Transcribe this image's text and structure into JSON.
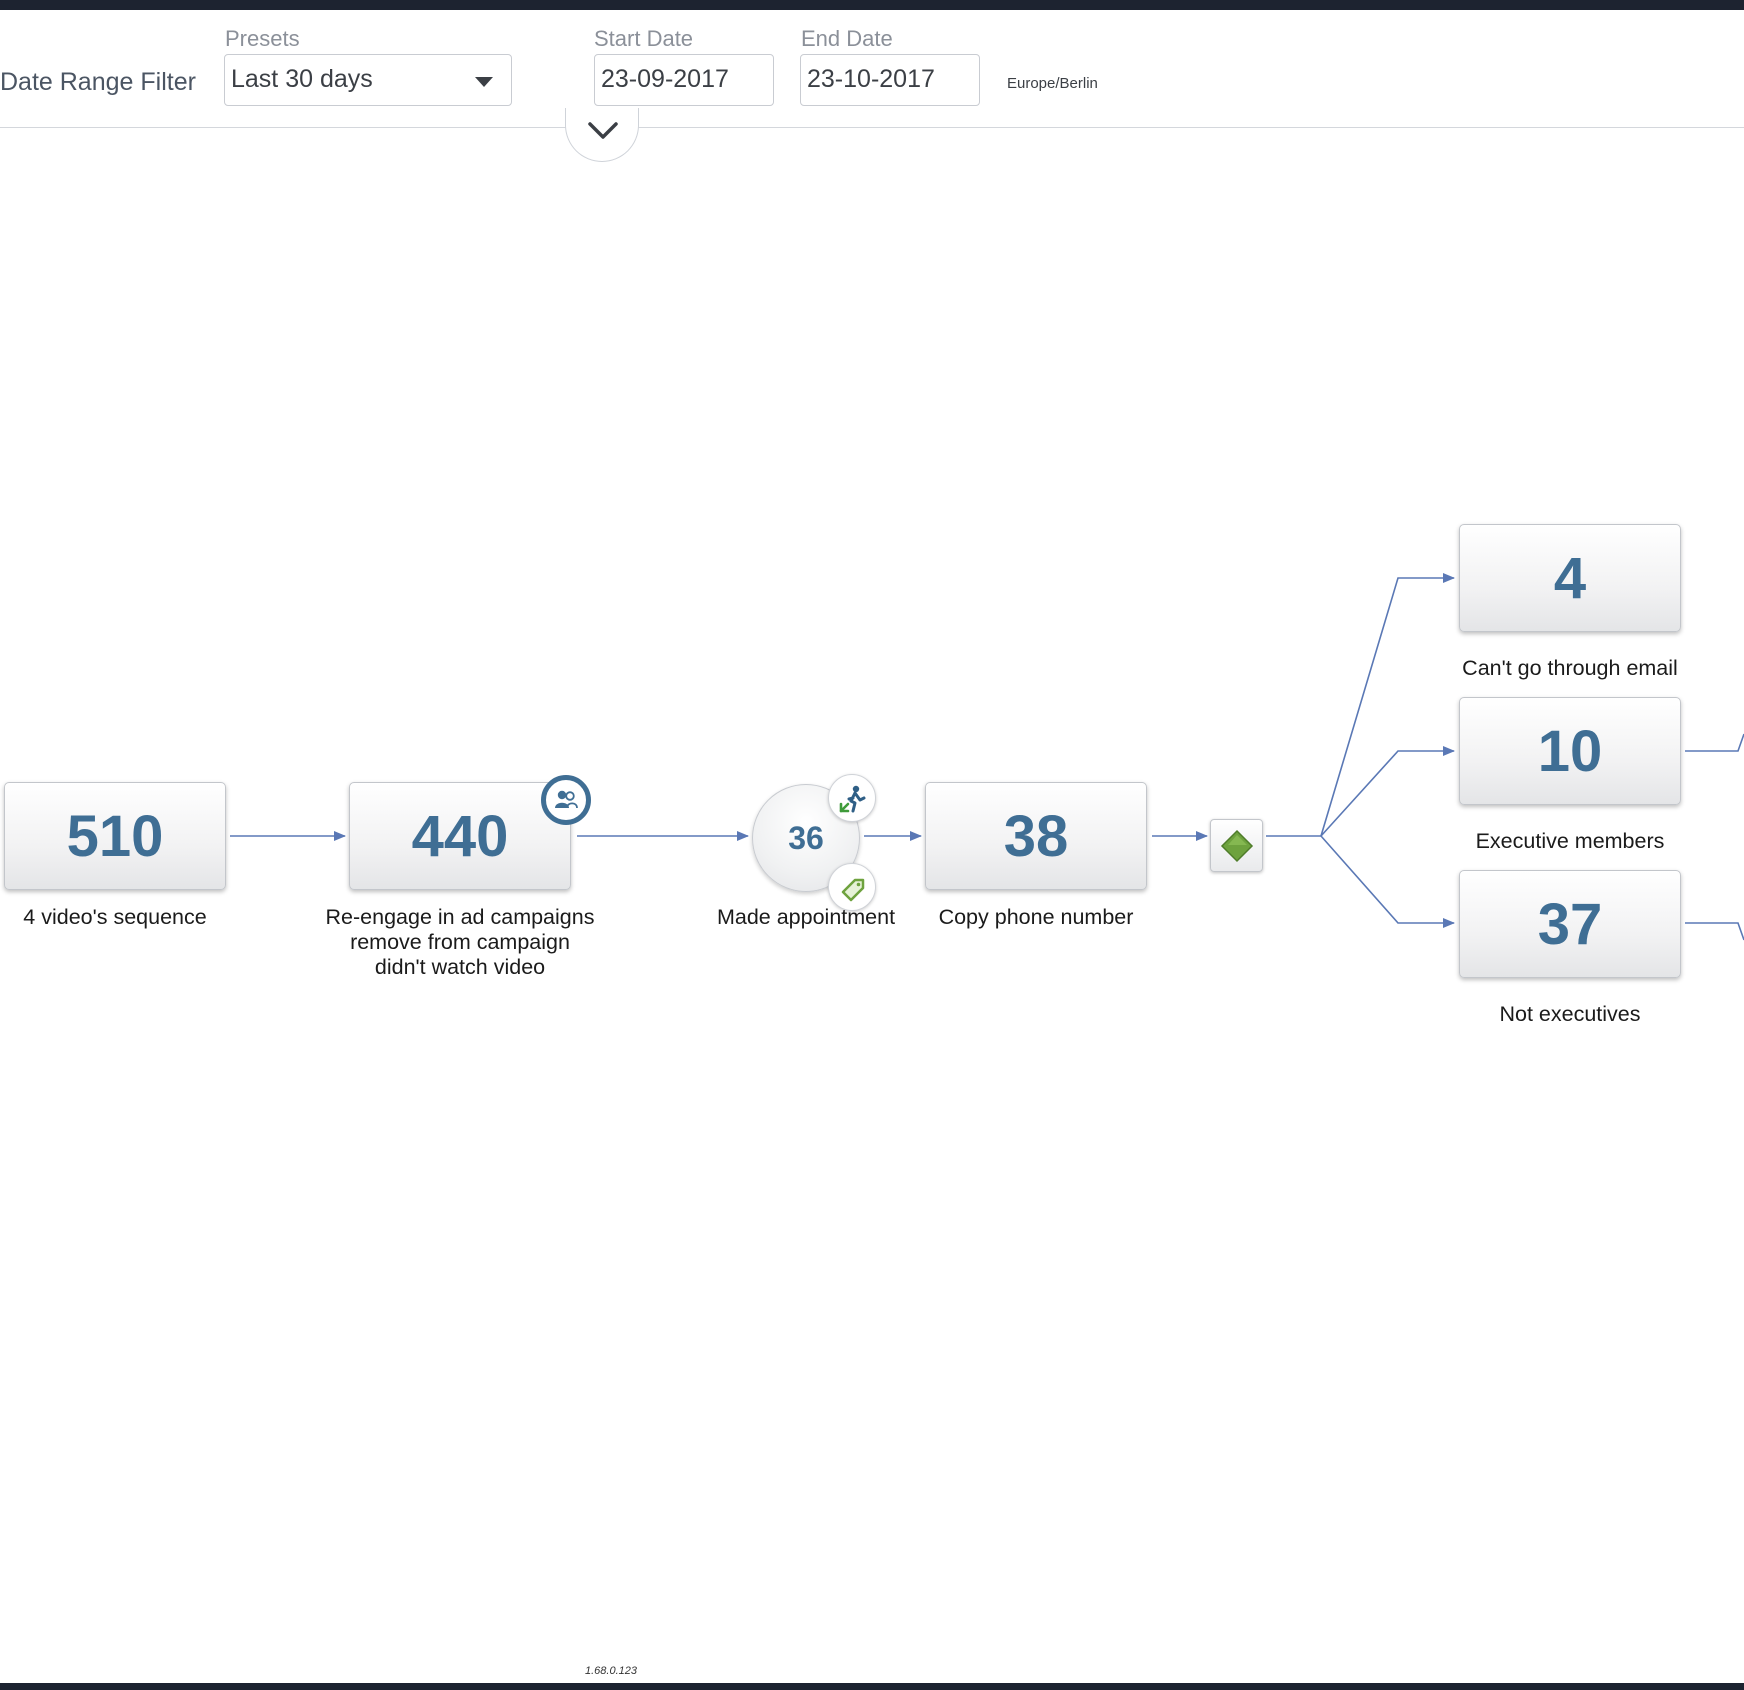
{
  "filter": {
    "title": "Date Range Filter",
    "presets_label": "Presets",
    "presets_value": "Last 30 days",
    "start_label": "Start Date",
    "start_value": "23-09-2017",
    "end_label": "End Date",
    "end_value": "23-10-2017",
    "timezone": "Europe/Berlin"
  },
  "flow": {
    "nodes": [
      {
        "count": "510",
        "label": "4 video's sequence"
      },
      {
        "count": "440",
        "label_lines": [
          "Re-engage in ad campaigns",
          "remove from campaign",
          "didn't watch video"
        ]
      },
      {
        "count": "36",
        "label": "Made appointment",
        "shape": "circle"
      },
      {
        "count": "38",
        "label": "Copy phone number"
      },
      {
        "count": "4",
        "label": "Can't go through email"
      },
      {
        "count": "10",
        "label": "Executive members"
      },
      {
        "count": "37",
        "label": "Not executives"
      }
    ],
    "icons": {
      "audience": "audience-icon",
      "walk_out": "person-exit-icon",
      "tag": "tag-icon",
      "condition": "condition-diamond-icon"
    },
    "colors": {
      "count_text": "#3f6e94",
      "connector": "#5a78b5",
      "condition_diamond": "#6ea23e"
    }
  },
  "footer": {
    "version": "1.68.0.123"
  }
}
